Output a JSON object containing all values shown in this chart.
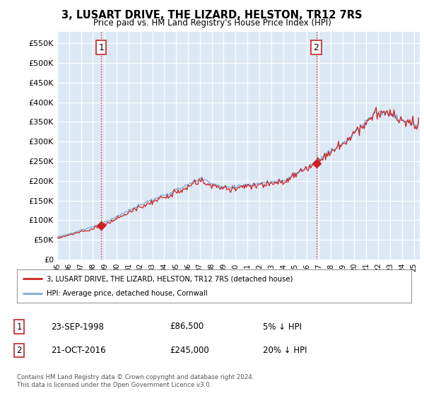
{
  "title": "3, LUSART DRIVE, THE LIZARD, HELSTON, TR12 7RS",
  "subtitle": "Price paid vs. HM Land Registry's House Price Index (HPI)",
  "ylim": [
    0,
    580000
  ],
  "yticks": [
    0,
    50000,
    100000,
    150000,
    200000,
    250000,
    300000,
    350000,
    400000,
    450000,
    500000,
    550000
  ],
  "ytick_labels": [
    "£0",
    "£50K",
    "£100K",
    "£150K",
    "£200K",
    "£250K",
    "£300K",
    "£350K",
    "£400K",
    "£450K",
    "£500K",
    "£550K"
  ],
  "sale1_year": 1998,
  "sale1_month": 9,
  "sale1_price": 86500,
  "sale2_year": 2016,
  "sale2_month": 10,
  "sale2_price": 245000,
  "hpi_color": "#7aaad4",
  "price_color": "#cc2222",
  "vline_color": "#cc3333",
  "legend_label1": "3, LUSART DRIVE, THE LIZARD, HELSTON, TR12 7RS (detached house)",
  "legend_label2": "HPI: Average price, detached house, Cornwall",
  "table_row1": [
    "1",
    "23-SEP-1998",
    "£86,500",
    "5% ↓ HPI"
  ],
  "table_row2": [
    "2",
    "21-OCT-2016",
    "£245,000",
    "20% ↓ HPI"
  ],
  "footnote": "Contains HM Land Registry data © Crown copyright and database right 2024.\nThis data is licensed under the Open Government Licence v3.0.",
  "bg_color": "#ffffff",
  "plot_bg_color": "#dce9f5"
}
